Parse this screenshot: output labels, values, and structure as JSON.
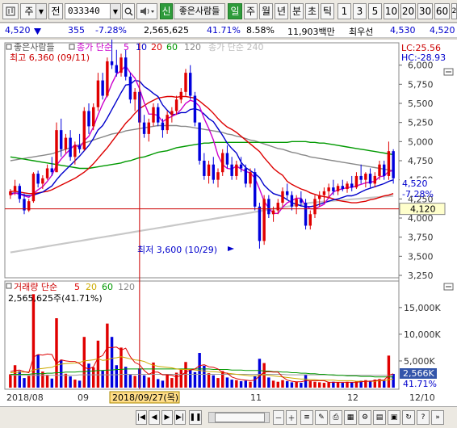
{
  "toolbar": {
    "chart_type_icon": "candlestick-chart-icon",
    "market_label": "주",
    "scope_label": "전",
    "stock_code": "033340",
    "sound_icon": "speaker-icon",
    "new_badge": "신",
    "stock_name": "좋은사람들",
    "period_buttons": [
      "일",
      "주",
      "월",
      "년",
      "분",
      "초",
      "틱"
    ],
    "active_period": "일",
    "interval_buttons": [
      "1",
      "3",
      "5",
      "10",
      "20",
      "30",
      "60",
      "120"
    ]
  },
  "info": {
    "price": "4,520",
    "direction_icon": "down-triangle-icon",
    "change": "355",
    "change_pct": "-7.28%",
    "volume": "2,565,625",
    "volume_ratio": "41.71%",
    "turnover": "8.58%",
    "amount": "11,903백만",
    "min_label": "최우선",
    "bid": "4,530",
    "ask": "4,520"
  },
  "price_panel": {
    "title": "좋은사람들",
    "legend": {
      "label": "종가 단순",
      "periods": [
        "5",
        "10",
        "20",
        "60",
        "120"
      ],
      "colors": [
        "#cc00cc",
        "#0000cc",
        "#dd0000",
        "#009900",
        "#999999"
      ],
      "extra_label": "종가 단순 240",
      "extra_color": "#bbbbbb"
    },
    "high_note": "최고 6,360 (09/11)",
    "low_note": "최저 3,600 (10/29)",
    "lc": "LC:25.56",
    "hc": "HC:-28.93",
    "axis_ticks": [
      "6,000",
      "5,750",
      "5,500",
      "5,250",
      "5,000",
      "4,750",
      "4,500",
      "4,250",
      "4,000",
      "3,750",
      "3,500",
      "3,250"
    ],
    "current_price_tag": "4,520",
    "current_pct_tag": "-7.28%",
    "crosshair_price_tag": "4,120",
    "collapse_icon": "minimize-icon"
  },
  "volume_panel": {
    "legend_label": "거래량 단순",
    "periods": [
      "5",
      "20",
      "60",
      "120"
    ],
    "colors": [
      "#dd0000",
      "#ccaa00",
      "#009900",
      "#999999"
    ],
    "summary": "2,565,625주(41.71%)",
    "axis_ticks": [
      "15,000K",
      "10,000K",
      "5,000K"
    ],
    "current_tag": "2,566K",
    "current_pct_tag": "41.71%",
    "collapse_icon": "minimize-icon"
  },
  "x_axis": {
    "labels": [
      "2018/08",
      "09",
      "11",
      "12",
      "12/10"
    ],
    "crosshair_date": "2018/09/27(목)"
  },
  "chart_data": {
    "type": "candlestick",
    "price_range": [
      3250,
      6250
    ],
    "note": "Daily candlesticks from 2018/08 to 2018/12/10; crosshair at 2018/09/27",
    "candles": [
      [
        4300,
        4380,
        4250,
        4350
      ],
      [
        4350,
        4500,
        4300,
        4420
      ],
      [
        4420,
        4450,
        4200,
        4250
      ],
      [
        4250,
        4320,
        4050,
        4100
      ],
      [
        4100,
        4250,
        4080,
        4220
      ],
      [
        4220,
        4600,
        4200,
        4580
      ],
      [
        4580,
        4620,
        4400,
        4450
      ],
      [
        4450,
        4560,
        4380,
        4520
      ],
      [
        4520,
        4700,
        4500,
        4650
      ],
      [
        4650,
        4800,
        4550,
        4600
      ],
      [
        4600,
        5250,
        4600,
        5150
      ],
      [
        5150,
        5300,
        4800,
        4900
      ],
      [
        4900,
        5100,
        4850,
        5050
      ],
      [
        5050,
        5150,
        4750,
        4800
      ],
      [
        4800,
        5000,
        4700,
        4950
      ],
      [
        4950,
        5100,
        4850,
        4900
      ],
      [
        4900,
        5450,
        4880,
        5400
      ],
      [
        5400,
        5500,
        5100,
        5200
      ],
      [
        5200,
        5500,
        5150,
        5450
      ],
      [
        5450,
        5900,
        5400,
        5800
      ],
      [
        5800,
        5900,
        5550,
        5600
      ],
      [
        5600,
        6100,
        5580,
        6050
      ],
      [
        6050,
        6360,
        5950,
        6000
      ],
      [
        6000,
        6200,
        5850,
        5900
      ],
      [
        5900,
        6150,
        5850,
        6100
      ],
      [
        6100,
        6200,
        5800,
        5850
      ],
      [
        5850,
        5900,
        5500,
        5550
      ],
      [
        5550,
        5700,
        5400,
        5650
      ],
      [
        5650,
        5700,
        5200,
        5250
      ],
      [
        5250,
        5350,
        5050,
        5100
      ],
      [
        5100,
        5300,
        5000,
        5250
      ],
      [
        5250,
        5500,
        5200,
        5450
      ],
      [
        5450,
        5500,
        5200,
        5250
      ],
      [
        5250,
        5300,
        5050,
        5150
      ],
      [
        5150,
        5400,
        5100,
        5350
      ],
      [
        5350,
        5450,
        5250,
        5400
      ],
      [
        5400,
        5600,
        5350,
        5550
      ],
      [
        5550,
        5700,
        5500,
        5650
      ],
      [
        5650,
        5950,
        5600,
        5900
      ],
      [
        5900,
        6000,
        5550,
        5600
      ],
      [
        5600,
        5650,
        5200,
        5250
      ],
      [
        5250,
        5250,
        4700,
        4750
      ],
      [
        4750,
        4850,
        4500,
        4550
      ],
      [
        4550,
        4750,
        4450,
        4700
      ],
      [
        4700,
        4800,
        4450,
        4500
      ],
      [
        4500,
        4650,
        4400,
        4600
      ],
      [
        4600,
        4900,
        4550,
        4850
      ],
      [
        4850,
        4950,
        4650,
        4700
      ],
      [
        4700,
        4800,
        4500,
        4550
      ],
      [
        4550,
        4750,
        4500,
        4700
      ],
      [
        4700,
        4800,
        4600,
        4650
      ],
      [
        4650,
        4700,
        4400,
        4450
      ],
      [
        4450,
        4650,
        4400,
        4600
      ],
      [
        4600,
        4650,
        4100,
        4150
      ],
      [
        4150,
        4200,
        3600,
        3700
      ],
      [
        3700,
        4300,
        3650,
        4250
      ],
      [
        4250,
        4300,
        4000,
        4050
      ],
      [
        4050,
        4150,
        3950,
        4100
      ],
      [
        4100,
        4250,
        4050,
        4200
      ],
      [
        4200,
        4400,
        4150,
        4350
      ],
      [
        4350,
        4450,
        4250,
        4300
      ],
      [
        4300,
        4350,
        4100,
        4150
      ],
      [
        4150,
        4300,
        4050,
        4250
      ],
      [
        4250,
        4350,
        4150,
        4200
      ],
      [
        4200,
        4250,
        3850,
        3900
      ],
      [
        3900,
        4100,
        3850,
        4050
      ],
      [
        4050,
        4300,
        4000,
        4250
      ],
      [
        4250,
        4350,
        4150,
        4300
      ],
      [
        4300,
        4400,
        4200,
        4350
      ],
      [
        4350,
        4450,
        4250,
        4400
      ],
      [
        4400,
        4500,
        4300,
        4350
      ],
      [
        4350,
        4450,
        4300,
        4420
      ],
      [
        4420,
        4500,
        4350,
        4380
      ],
      [
        4380,
        4480,
        4330,
        4450
      ],
      [
        4450,
        4550,
        4350,
        4400
      ],
      [
        4400,
        4600,
        4380,
        4550
      ],
      [
        4550,
        4700,
        4450,
        4500
      ],
      [
        4500,
        4600,
        4400,
        4580
      ],
      [
        4580,
        4650,
        4400,
        4450
      ],
      [
        4450,
        4600,
        4400,
        4550
      ],
      [
        4550,
        4750,
        4500,
        4700
      ],
      [
        4700,
        4750,
        4500,
        4550
      ],
      [
        4550,
        5000,
        4500,
        4875
      ],
      [
        4875,
        4900,
        4450,
        4520
      ]
    ],
    "ma5": [
      4300,
      4330,
      4310,
      4290,
      4270,
      4320,
      4370,
      4410,
      4480,
      4560,
      4690,
      4770,
      4840,
      4900,
      4960,
      4920,
      5010,
      5070,
      5190,
      5350,
      5490,
      5610,
      5760,
      5880,
      5930,
      5990,
      5900,
      5830,
      5690,
      5510,
      5360,
      5360,
      5340,
      5260,
      5300,
      5330,
      5360,
      5420,
      5500,
      5540,
      5520,
      5460,
      5300,
      5170,
      5020,
      4820,
      4700,
      4650,
      4640,
      4680,
      4640,
      4610,
      4590,
      4520,
      4380,
      4220,
      4130,
      4060,
      4060,
      4140,
      4200,
      4230,
      4260,
      4260,
      4160,
      4120,
      4120,
      4150,
      4180,
      4270,
      4340,
      4370,
      4380,
      4400,
      4400,
      4420,
      4440,
      4460,
      4470,
      4480,
      4540,
      4550,
      4610,
      4620
    ],
    "ma10": [
      4320,
      4330,
      4320,
      4300,
      4290,
      4300,
      4320,
      4340,
      4380,
      4420,
      4500,
      4570,
      4630,
      4690,
      4750,
      4810,
      4880,
      4950,
      5040,
      5150,
      5210,
      5310,
      5420,
      5530,
      5640,
      5740,
      5750,
      5800,
      5790,
      5720,
      5680,
      5630,
      5590,
      5480,
      5410,
      5350,
      5360,
      5380,
      5380,
      5420,
      5430,
      5410,
      5360,
      5300,
      5260,
      5170,
      5080,
      4980,
      4910,
      4850,
      4730,
      4660,
      4620,
      4580,
      4530,
      4430,
      4370,
      4320,
      4300,
      4280,
      4240,
      4200,
      4180,
      4160,
      4150,
      4150,
      4160,
      4180,
      4200,
      4220,
      4240,
      4250,
      4270,
      4290,
      4290,
      4310,
      4340,
      4370,
      4390,
      4410,
      4430,
      4450,
      4480,
      4500
    ],
    "ma20": [
      4350,
      4350,
      4340,
      4330,
      4320,
      4320,
      4330,
      4340,
      4350,
      4370,
      4400,
      4430,
      4460,
      4490,
      4520,
      4560,
      4600,
      4650,
      4710,
      4780,
      4850,
      4920,
      5000,
      5080,
      5160,
      5240,
      5300,
      5370,
      5430,
      5470,
      5510,
      5540,
      5570,
      5580,
      5590,
      5590,
      5580,
      5590,
      5590,
      5580,
      5570,
      5530,
      5480,
      5430,
      5370,
      5300,
      5240,
      5190,
      5160,
      5120,
      5070,
      5020,
      4970,
      4920,
      4870,
      4790,
      4720,
      4650,
      4600,
      4560,
      4480,
      4440,
      4410,
      4380,
      4360,
      4330,
      4310,
      4290,
      4280,
      4270,
      4250,
      4230,
      4220,
      4210,
      4200,
      4200,
      4210,
      4220,
      4240,
      4250,
      4270,
      4290,
      4300,
      4320
    ],
    "ma60": [
      4800,
      4790,
      4780,
      4770,
      4760,
      4750,
      4740,
      4730,
      4720,
      4710,
      4700,
      4690,
      4680,
      4670,
      4660,
      4650,
      4650,
      4650,
      4660,
      4670,
      4680,
      4690,
      4700,
      4710,
      4720,
      4740,
      4750,
      4770,
      4790,
      4800,
      4820,
      4840,
      4860,
      4870,
      4880,
      4900,
      4920,
      4930,
      4940,
      4950,
      4960,
      4970,
      4980,
      4980,
      4990,
      4990,
      4990,
      4990,
      4990,
      4990,
      4990,
      4990,
      4990,
      4990,
      4990,
      4990,
      4990,
      4990,
      4990,
      4990,
      4990,
      5000,
      5000,
      5000,
      5000,
      4990,
      4990,
      4980,
      4980,
      4970,
      4960,
      4950,
      4940,
      4930,
      4920,
      4910,
      4900,
      4890,
      4880,
      4870,
      4860,
      4850,
      4840,
      4830
    ],
    "ma120": [
      4750,
      4760,
      4770,
      4780,
      4790,
      4800,
      4810,
      4820,
      4830,
      4840,
      4860,
      4880,
      4900,
      4920,
      4940,
      4960,
      4980,
      5000,
      5020,
      5040,
      5060,
      5080,
      5100,
      5110,
      5120,
      5140,
      5150,
      5160,
      5170,
      5180,
      5190,
      5200,
      5210,
      5210,
      5210,
      5210,
      5210,
      5200,
      5200,
      5190,
      5180,
      5170,
      5160,
      5150,
      5140,
      5130,
      5120,
      5100,
      5090,
      5070,
      5060,
      5040,
      5020,
      5010,
      4990,
      4970,
      4950,
      4930,
      4910,
      4900,
      4880,
      4860,
      4850,
      4830,
      4820,
      4800,
      4790,
      4780,
      4770,
      4760,
      4750,
      4740,
      4730,
      4720,
      4710,
      4700,
      4690,
      4680,
      4670,
      4660,
      4650,
      4640,
      4630,
      4620
    ],
    "ma240": [
      3550,
      3560,
      3570,
      3580,
      3590,
      3600,
      3610,
      3620,
      3630,
      3640,
      3650,
      3660,
      3670,
      3680,
      3690,
      3700,
      3710,
      3720,
      3730,
      3740,
      3750,
      3760,
      3770,
      3780,
      3790,
      3800,
      3810,
      3820,
      3830,
      3840,
      3850,
      3860,
      3870,
      3880,
      3890,
      3900,
      3910,
      3920,
      3930,
      3940,
      3950,
      3960,
      3970,
      3980,
      3990,
      4000,
      4010,
      4020,
      4030,
      4040,
      4050,
      4060,
      4070,
      4080,
      4090,
      4100,
      4110,
      4120,
      4130,
      4140,
      4150,
      4160,
      4170,
      4180,
      4190,
      4200,
      4205,
      4210,
      4215,
      4220,
      4225,
      4230,
      4235,
      4240,
      4245,
      4250,
      4255,
      4260,
      4265,
      4270,
      4275,
      4280,
      4285,
      4290
    ],
    "volume_range": [
      0,
      18000
    ],
    "volume_k": [
      2500,
      4200,
      3100,
      1800,
      2200,
      17500,
      6200,
      3000,
      2400,
      1700,
      13000,
      5200,
      2600,
      2100,
      1500,
      1300,
      9500,
      4500,
      3800,
      8800,
      3200,
      12000,
      9500,
      4200,
      7500,
      3900,
      2400,
      2200,
      3600,
      2300,
      1900,
      4700,
      1600,
      1300,
      2400,
      1800,
      2800,
      3500,
      4800,
      3400,
      2900,
      6500,
      4100,
      2700,
      2300,
      1800,
      3100,
      1900,
      1500,
      1400,
      1200,
      1300,
      1100,
      2100,
      5400,
      4600,
      1900,
      1300,
      1100,
      1400,
      1200,
      1000,
      1100,
      900,
      2400,
      1200,
      1100,
      1000,
      900,
      1000,
      1100,
      1000,
      900,
      1100,
      1000,
      1200,
      1300,
      1400,
      1300,
      1500,
      1600,
      1400,
      6000,
      2566
    ],
    "volume_ma5_k": [
      3000,
      3200,
      3300,
      3000,
      2800,
      5700,
      6200,
      6100,
      6300,
      6200,
      4500,
      5200,
      5000,
      4900,
      4900,
      4500,
      3800,
      3500,
      3900,
      5600,
      6000,
      7500,
      7500,
      7600,
      7000,
      7400,
      5800,
      4700,
      4300,
      3200,
      2500,
      2900,
      2900,
      2400,
      2400,
      2300,
      2000,
      2300,
      2900,
      3300,
      3500,
      4100,
      4300,
      3900,
      3800,
      3500,
      2800,
      2700,
      2000,
      1700,
      1500,
      1400,
      1300,
      1400,
      2200,
      2900,
      3000,
      2900,
      2900,
      2000,
      1400,
      1200,
      1100,
      1100,
      1300,
      1300,
      1300,
      1300,
      1300,
      1000,
      1000,
      1000,
      1000,
      1000,
      1000,
      1000,
      1100,
      1200,
      1200,
      1300,
      1400,
      1400,
      2300,
      2600
    ],
    "volume_ma20_k": [
      2800,
      2850,
      2900,
      2900,
      2950,
      3300,
      3500,
      3600,
      3700,
      3800,
      4200,
      4400,
      4500,
      4550,
      4600,
      4700,
      5000,
      5100,
      5200,
      5400,
      5100,
      5200,
      5500,
      5600,
      5800,
      5600,
      5400,
      5200,
      5100,
      4900,
      4500,
      4200,
      4000,
      3900,
      3800,
      3700,
      3500,
      3400,
      3400,
      3400,
      3300,
      3200,
      3100,
      3000,
      3000,
      2900,
      2800,
      2700,
      2600,
      2500,
      2400,
      2300,
      2200,
      2200,
      2300,
      2400,
      2300,
      2200,
      2100,
      2000,
      1900,
      1800,
      1700,
      1600,
      1600,
      1500,
      1500,
      1400,
      1400,
      1400,
      1400,
      1300,
      1300,
      1300,
      1300,
      1200,
      1200,
      1200,
      1200,
      1200,
      1300,
      1300,
      1500,
      1600
    ],
    "volume_ma60_k": [
      2500,
      2500,
      2500,
      2500,
      2500,
      2600,
      2600,
      2600,
      2700,
      2700,
      2800,
      2800,
      2900,
      2900,
      2900,
      3000,
      3000,
      3100,
      3100,
      3200,
      3200,
      3300,
      3300,
      3400,
      3400,
      3500,
      3500,
      3500,
      3500,
      3500,
      3500,
      3500,
      3500,
      3500,
      3500,
      3500,
      3500,
      3500,
      3500,
      3500,
      3500,
      3500,
      3500,
      3500,
      3400,
      3400,
      3400,
      3400,
      3300,
      3300,
      3300,
      3200,
      3200,
      3200,
      3200,
      3100,
      3100,
      3000,
      3000,
      2900,
      2900,
      2800,
      2800,
      2700,
      2700,
      2600,
      2600,
      2500,
      2500,
      2400,
      2400,
      2300,
      2300,
      2200,
      2200,
      2200,
      2100,
      2100,
      2100,
      2000,
      2000,
      2000,
      2000,
      2000
    ],
    "volume_ma120_k": [
      2300,
      2300,
      2300,
      2300,
      2300,
      2300,
      2300,
      2300,
      2300,
      2300,
      2300,
      2300,
      2300,
      2300,
      2300,
      2400,
      2400,
      2400,
      2400,
      2400,
      2400,
      2400,
      2400,
      2400,
      2500,
      2500,
      2500,
      2500,
      2500,
      2500,
      2500,
      2500,
      2500,
      2500,
      2500,
      2500,
      2500,
      2500,
      2500,
      2500,
      2500,
      2500,
      2500,
      2500,
      2500,
      2500,
      2500,
      2500,
      2500,
      2500,
      2500,
      2500,
      2500,
      2500,
      2500,
      2500,
      2500,
      2500,
      2500,
      2500,
      2400,
      2400,
      2400,
      2400,
      2400,
      2400,
      2400,
      2400,
      2400,
      2400,
      2300,
      2300,
      2300,
      2300,
      2300,
      2300,
      2300,
      2300,
      2300,
      2300,
      2300,
      2300,
      2300,
      2300
    ],
    "crosshair_index": 28,
    "crosshair_price": 4120
  }
}
